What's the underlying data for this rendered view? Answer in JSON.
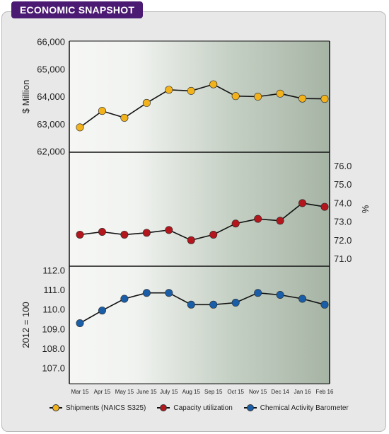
{
  "banner": {
    "title": "ECONOMIC SNAPSHOT"
  },
  "colors": {
    "banner_bg": "#4b1a72",
    "shipments": "#f2b21b",
    "capacity": "#b3161c",
    "barometer": "#1a5ea8",
    "line": "#111111",
    "panel_light": "#f6f7f5",
    "panel_dark": "#a6b4a5"
  },
  "chart_data": {
    "type": "line",
    "categories": [
      "Mar 15",
      "Apr 15",
      "May 15",
      "June 15",
      "July 15",
      "Aug 15",
      "Sep 15",
      "Oct 15",
      "Nov 15",
      "Dec 14",
      "Jan 16",
      "Feb 16"
    ],
    "series": [
      {
        "name": "Shipments (NAICS S325)",
        "panel": "top",
        "ylabel": "$ Million",
        "ylim": [
          62000,
          66000
        ],
        "yticks": [
          "62,000",
          "63,000",
          "64,000",
          "65,000",
          "66,000"
        ],
        "values": [
          62880,
          63480,
          63230,
          63770,
          64250,
          64210,
          64450,
          64020,
          64000,
          64110,
          63930,
          63920
        ]
      },
      {
        "name": "Capacity utilization",
        "panel": "middle",
        "ylabel": "%",
        "ylim": [
          71.0,
          76.0
        ],
        "yticks": [
          "71.0",
          "72.0",
          "73.0",
          "74.0",
          "75.0",
          "76.0"
        ],
        "values": [
          72.3,
          72.45,
          72.3,
          72.4,
          72.55,
          72.0,
          72.3,
          72.9,
          73.15,
          73.05,
          74.0,
          73.8
        ]
      },
      {
        "name": "Chemical Activity Barometer",
        "panel": "bottom",
        "ylabel": "2012 = 100",
        "ylim": [
          107.0,
          112.0
        ],
        "yticks": [
          "107.0",
          "108.0",
          "109.0",
          "110.0",
          "111.0",
          "112.0"
        ],
        "values": [
          109.3,
          109.95,
          110.55,
          110.85,
          110.85,
          110.25,
          110.25,
          110.35,
          110.85,
          110.75,
          110.55,
          110.25
        ]
      }
    ],
    "legend_position": "bottom",
    "grid": false
  }
}
